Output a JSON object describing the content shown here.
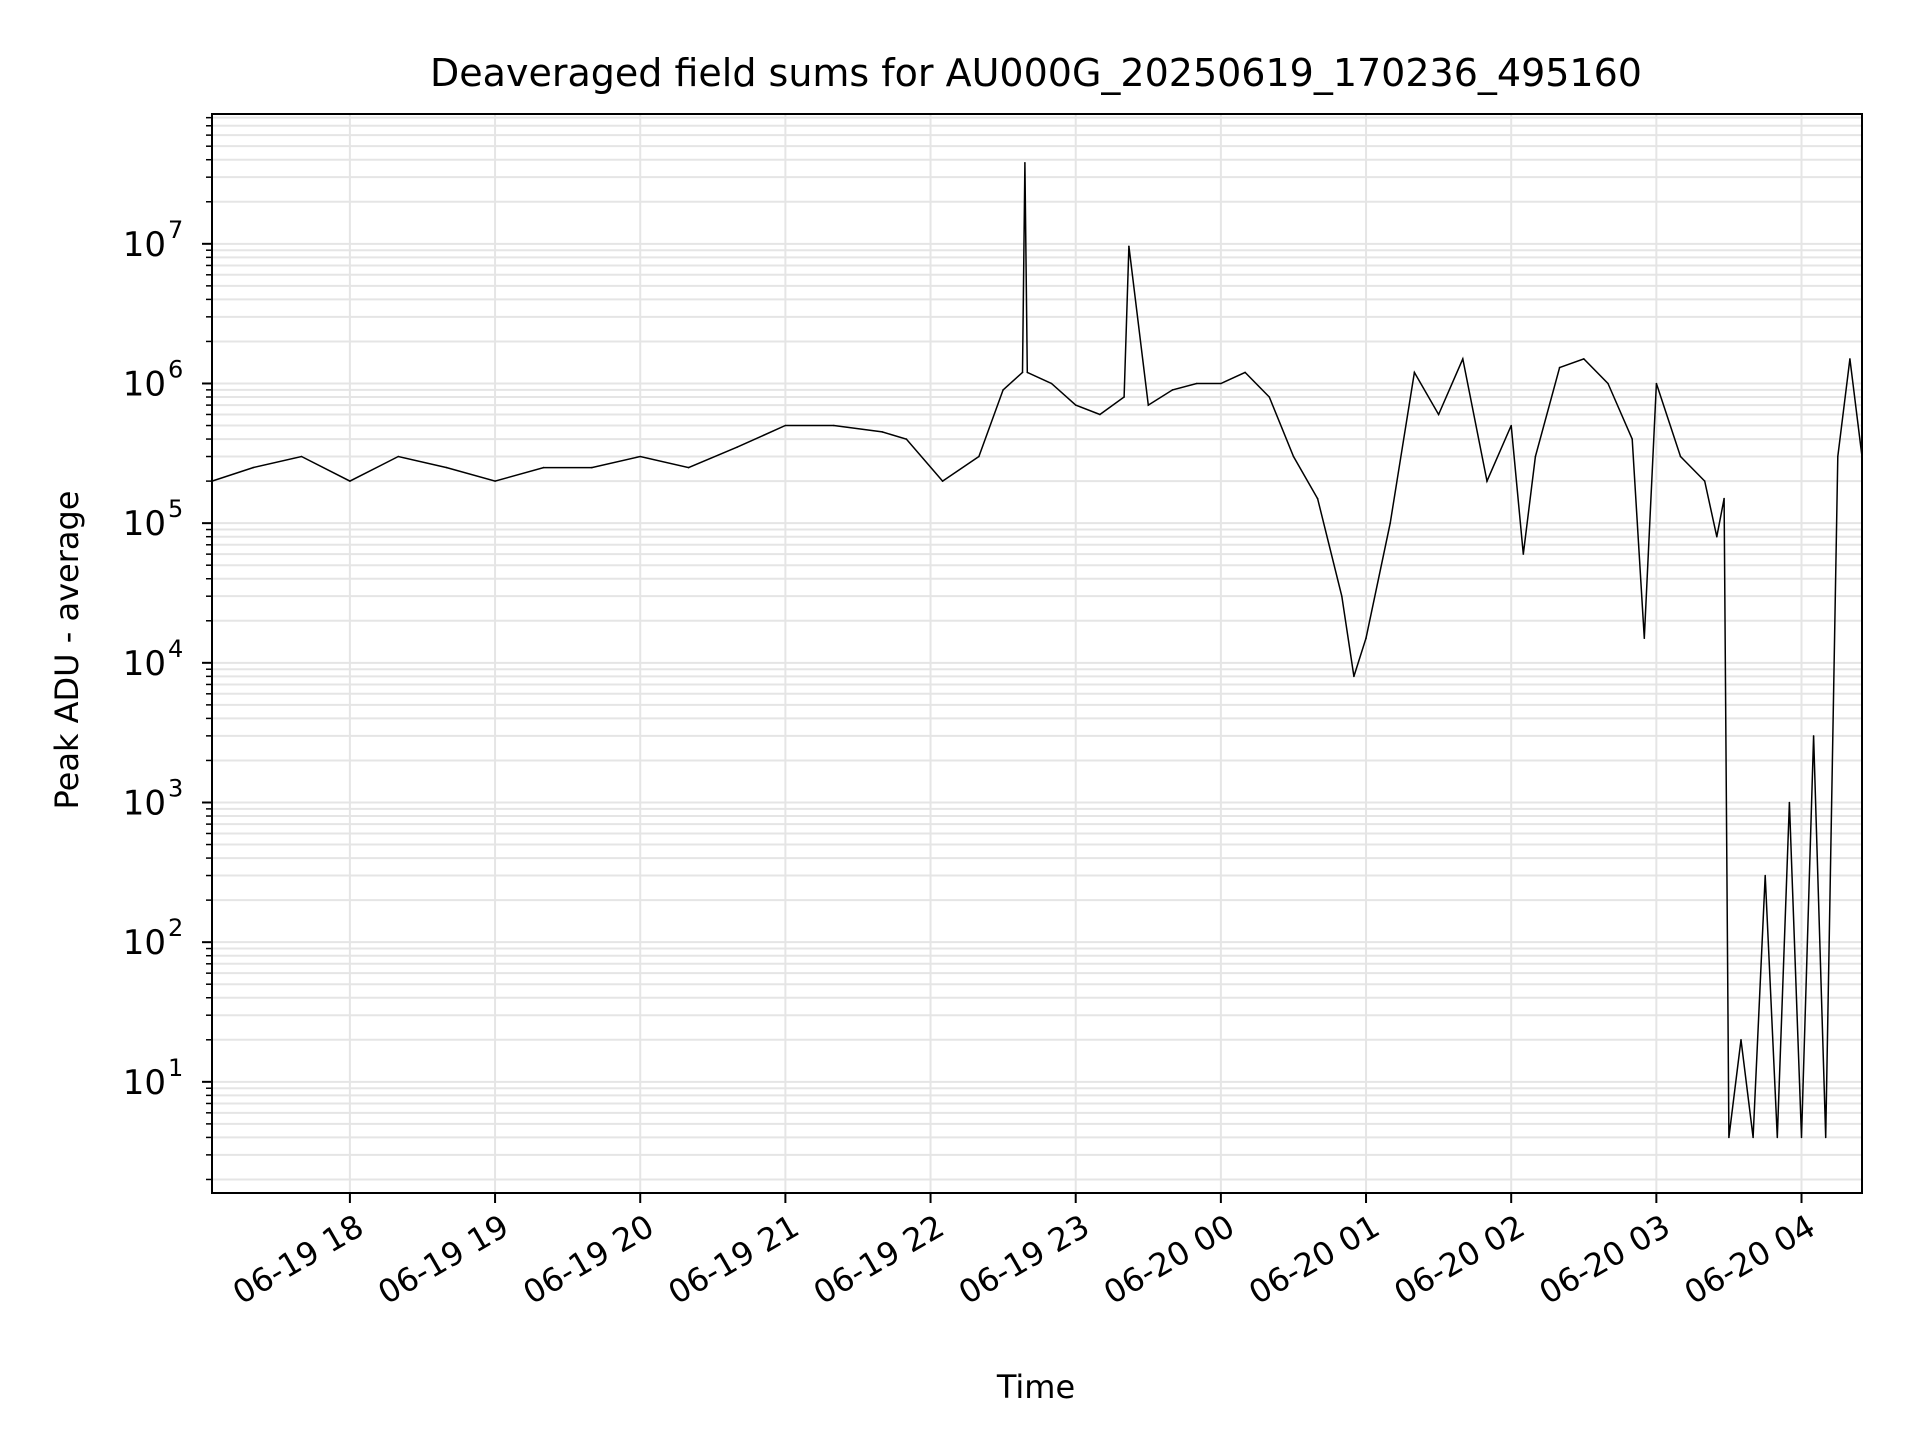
{
  "chart_data": {
    "type": "line",
    "title": "Deaveraged field sums for AU000G_20250619_170236_495160",
    "xlabel": "Time",
    "ylabel": "Peak ADU - average",
    "yscale": "log",
    "ylim": [
      1.6,
      85000000
    ],
    "xlim": [
      "2025-06-19 17:03",
      "2025-06-20 04:25"
    ],
    "grid": true,
    "line_color": "#000000",
    "grid_color": "#e5e5e5",
    "x_tick_labels": [
      "06-19 18",
      "06-19 19",
      "06-19 20",
      "06-19 21",
      "06-19 22",
      "06-19 23",
      "06-20 00",
      "06-20 01",
      "06-20 02",
      "06-20 03",
      "06-20 04"
    ],
    "x_tick_times": [
      "2025-06-19 18:00",
      "2025-06-19 19:00",
      "2025-06-19 20:00",
      "2025-06-19 21:00",
      "2025-06-19 22:00",
      "2025-06-19 23:00",
      "2025-06-20 00:00",
      "2025-06-20 01:00",
      "2025-06-20 02:00",
      "2025-06-20 03:00",
      "2025-06-20 04:00"
    ],
    "y_ticks": [
      {
        "value": 10,
        "base": "10",
        "exp": "1"
      },
      {
        "value": 100,
        "base": "10",
        "exp": "2"
      },
      {
        "value": 1000,
        "base": "10",
        "exp": "3"
      },
      {
        "value": 10000,
        "base": "10",
        "exp": "4"
      },
      {
        "value": 100000,
        "base": "10",
        "exp": "5"
      },
      {
        "value": 1000000,
        "base": "10",
        "exp": "6"
      },
      {
        "value": 10000000,
        "base": "10",
        "exp": "7"
      }
    ],
    "series": [
      {
        "x": [
          "2025-06-19 17:03",
          "2025-06-19 17:20",
          "2025-06-19 17:40",
          "2025-06-19 18:00",
          "2025-06-19 18:20",
          "2025-06-19 18:40",
          "2025-06-19 19:00",
          "2025-06-19 19:20",
          "2025-06-19 19:40",
          "2025-06-19 20:00",
          "2025-06-19 20:20",
          "2025-06-19 20:40",
          "2025-06-19 21:00",
          "2025-06-19 21:20",
          "2025-06-19 21:40",
          "2025-06-19 21:50",
          "2025-06-19 22:05",
          "2025-06-19 22:20",
          "2025-06-19 22:30",
          "2025-06-19 22:38",
          "2025-06-19 22:39",
          "2025-06-19 22:40",
          "2025-06-19 22:50",
          "2025-06-19 23:00",
          "2025-06-19 23:10",
          "2025-06-19 23:20",
          "2025-06-19 23:22",
          "2025-06-19 23:30",
          "2025-06-19 23:40",
          "2025-06-19 23:50",
          "2025-06-20 00:00",
          "2025-06-20 00:10",
          "2025-06-20 00:20",
          "2025-06-20 00:30",
          "2025-06-20 00:40",
          "2025-06-20 00:50",
          "2025-06-20 00:55",
          "2025-06-20 01:00",
          "2025-06-20 01:10",
          "2025-06-20 01:20",
          "2025-06-20 01:30",
          "2025-06-20 01:40",
          "2025-06-20 01:50",
          "2025-06-20 02:00",
          "2025-06-20 02:05",
          "2025-06-20 02:10",
          "2025-06-20 02:20",
          "2025-06-20 02:30",
          "2025-06-20 02:40",
          "2025-06-20 02:50",
          "2025-06-20 02:55",
          "2025-06-20 03:00",
          "2025-06-20 03:10",
          "2025-06-20 03:20",
          "2025-06-20 03:25",
          "2025-06-20 03:28",
          "2025-06-20 03:30",
          "2025-06-20 03:35",
          "2025-06-20 03:40",
          "2025-06-20 03:45",
          "2025-06-20 03:50",
          "2025-06-20 03:55",
          "2025-06-20 04:00",
          "2025-06-20 04:05",
          "2025-06-20 04:10",
          "2025-06-20 04:15",
          "2025-06-20 04:20",
          "2025-06-20 04:25"
        ],
        "y": [
          200000,
          250000,
          300000,
          200000,
          300000,
          250000,
          200000,
          250000,
          250000,
          300000,
          250000,
          350000,
          500000,
          500000,
          450000,
          400000,
          200000,
          300000,
          900000,
          1200000,
          38000000,
          1200000,
          1000000,
          700000,
          600000,
          800000,
          9600000,
          700000,
          900000,
          1000000,
          1000000,
          1200000,
          800000,
          300000,
          150000,
          30000,
          8000,
          15000,
          100000,
          1200000,
          600000,
          1500000,
          200000,
          500000,
          60000,
          300000,
          1300000,
          1500000,
          1000000,
          400000,
          15000,
          1000000,
          300000,
          200000,
          80000,
          150000,
          4,
          20,
          4,
          300,
          4,
          1000,
          4,
          3000,
          4,
          300000,
          1500000,
          300000
        ]
      }
    ]
  }
}
